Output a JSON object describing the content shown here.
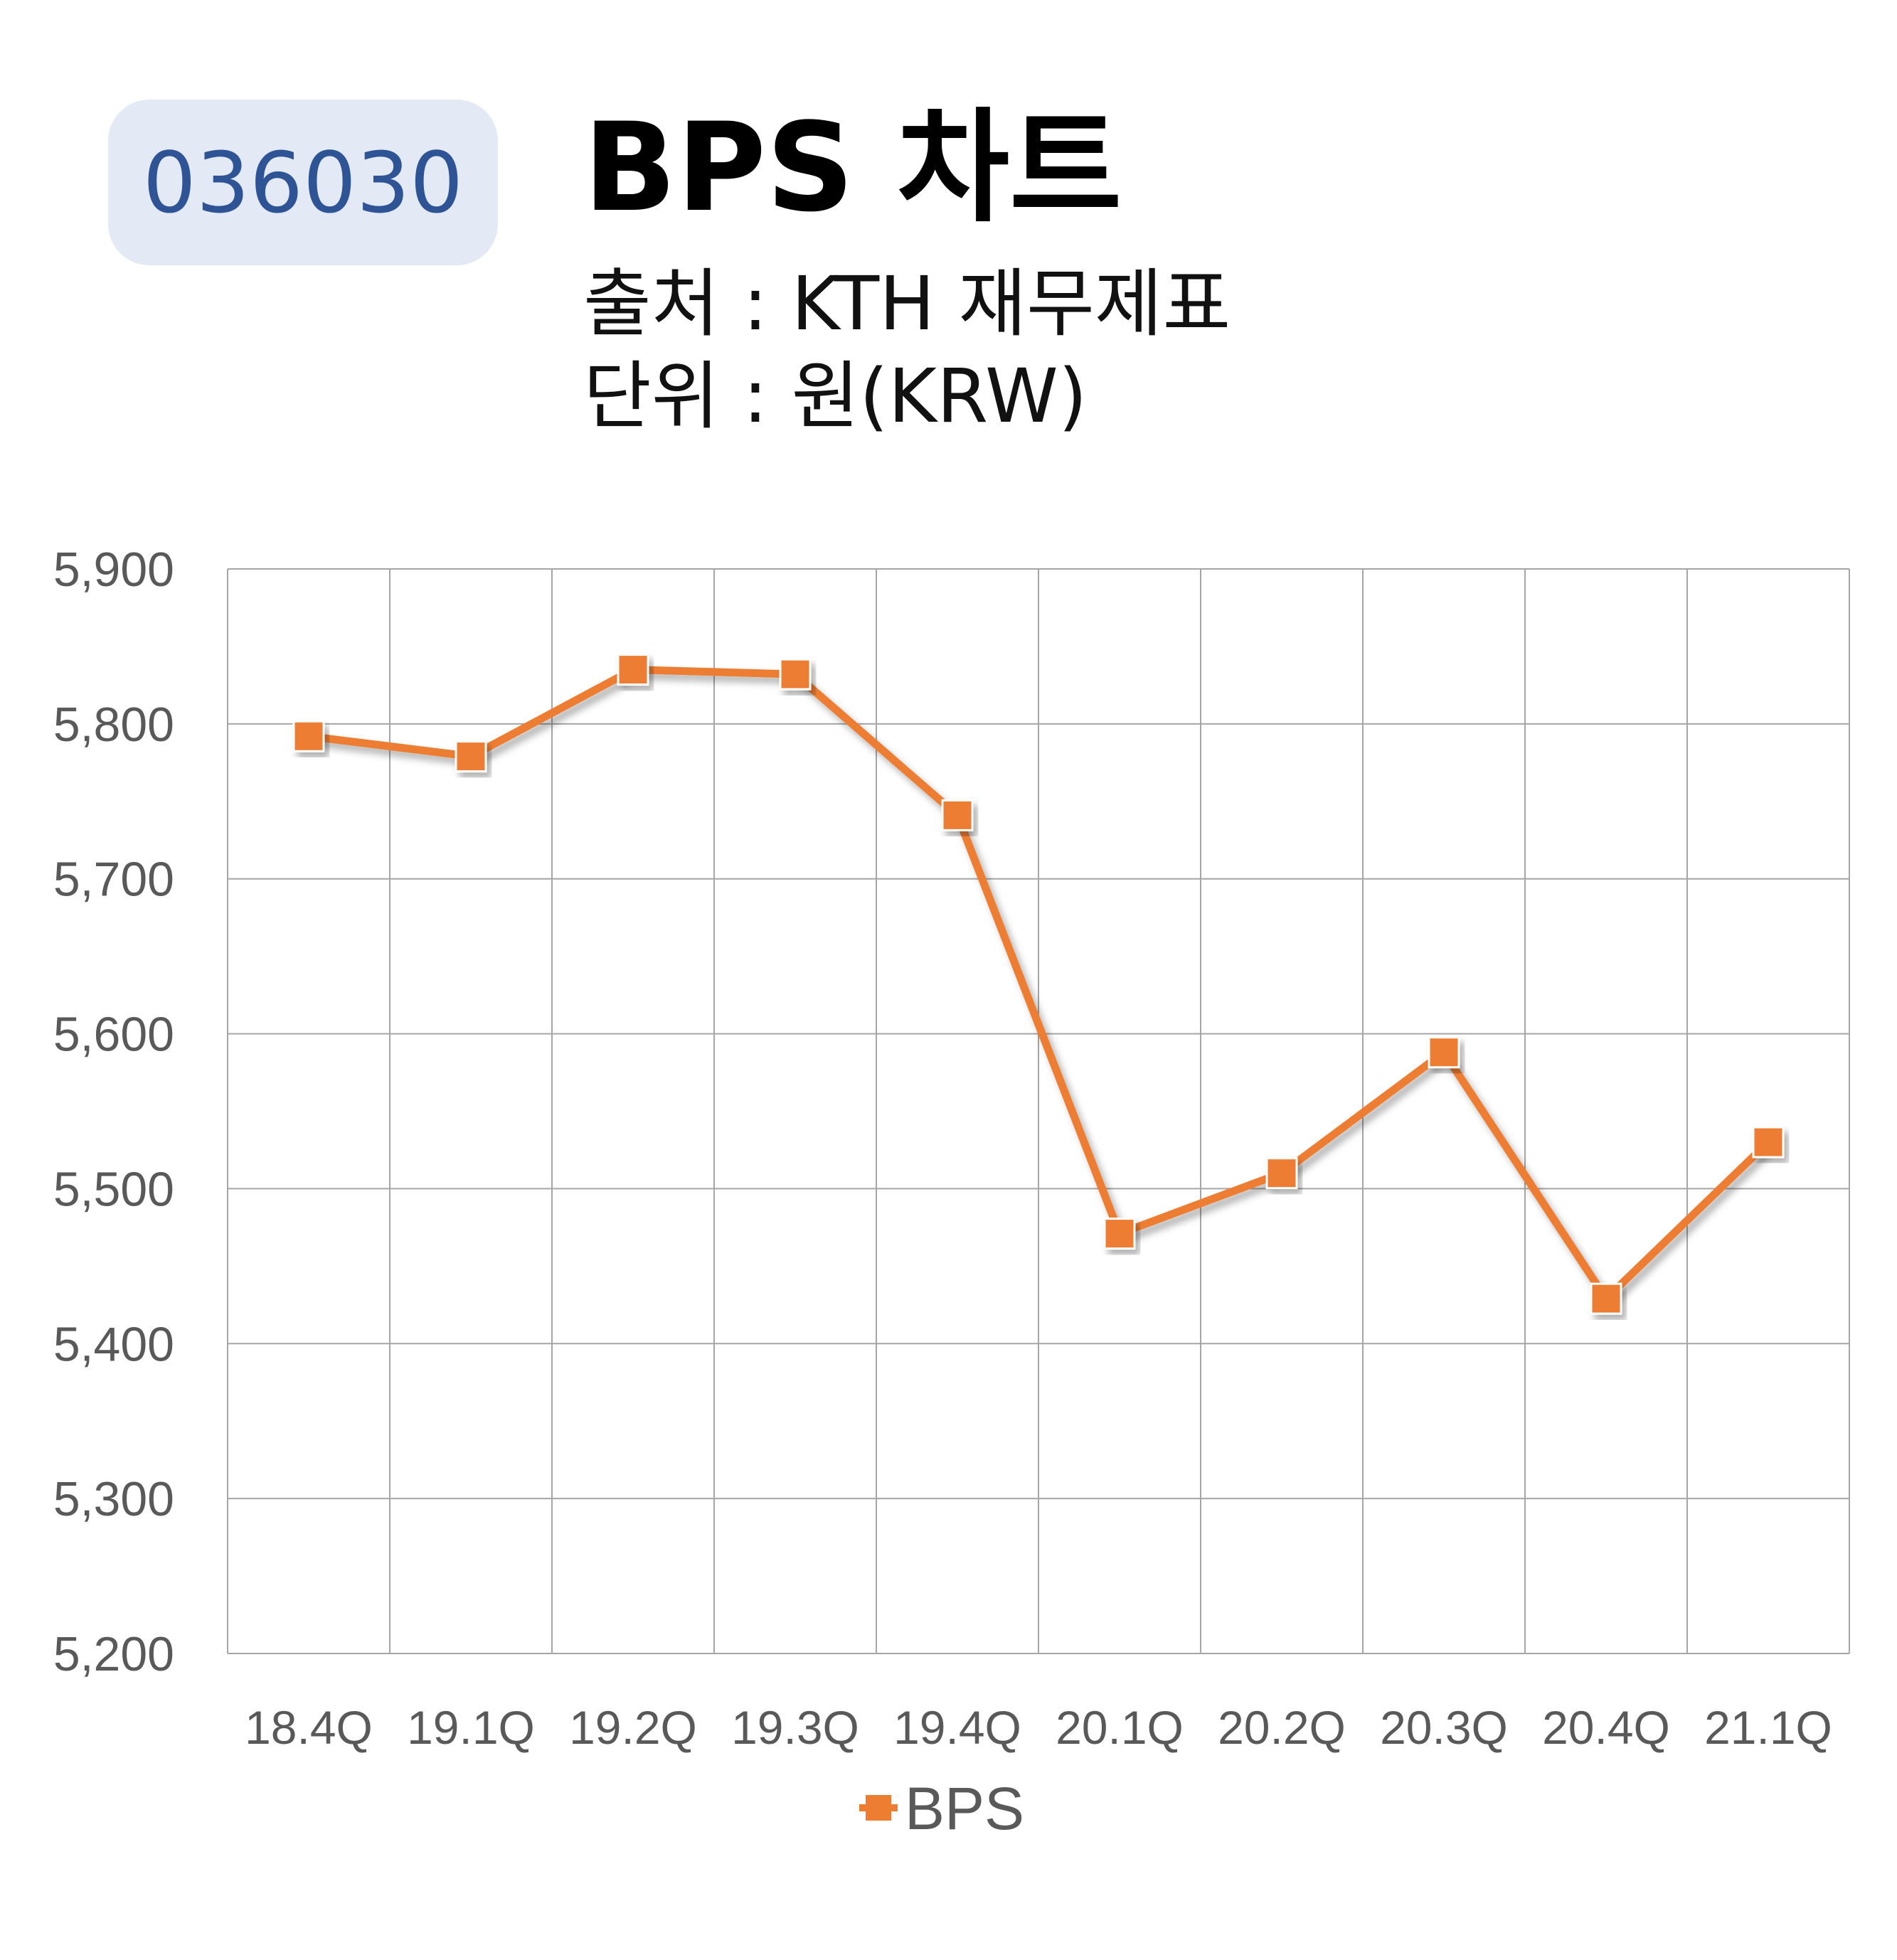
{
  "header": {
    "code": "036030",
    "title": "BPS 차트",
    "source": "출처 : KTH 재무제표",
    "unit": "단위 : 원(KRW)"
  },
  "colors": {
    "series": "#ed7d31",
    "grid": "#a6a6a6",
    "badge_bg": "#e3e9f5",
    "badge_text": "#2f5496"
  },
  "chart_data": {
    "type": "line",
    "categories": [
      "18.4Q",
      "19.1Q",
      "19.2Q",
      "19.3Q",
      "19.4Q",
      "20.1Q",
      "20.2Q",
      "20.3Q",
      "20.4Q",
      "21.1Q"
    ],
    "series": [
      {
        "name": "BPS",
        "values": [
          5792,
          5779,
          5835,
          5832,
          5741,
          5471,
          5510,
          5588,
          5429,
          5530
        ]
      }
    ],
    "ylim": [
      5200,
      5900
    ],
    "yticks": [
      5200,
      5300,
      5400,
      5500,
      5600,
      5700,
      5800,
      5900
    ],
    "ytick_labels": [
      "5,200",
      "5,300",
      "5,400",
      "5,500",
      "5,600",
      "5,700",
      "5,800",
      "5,900"
    ],
    "grid": true,
    "legend": "bottom",
    "marker": "square"
  }
}
